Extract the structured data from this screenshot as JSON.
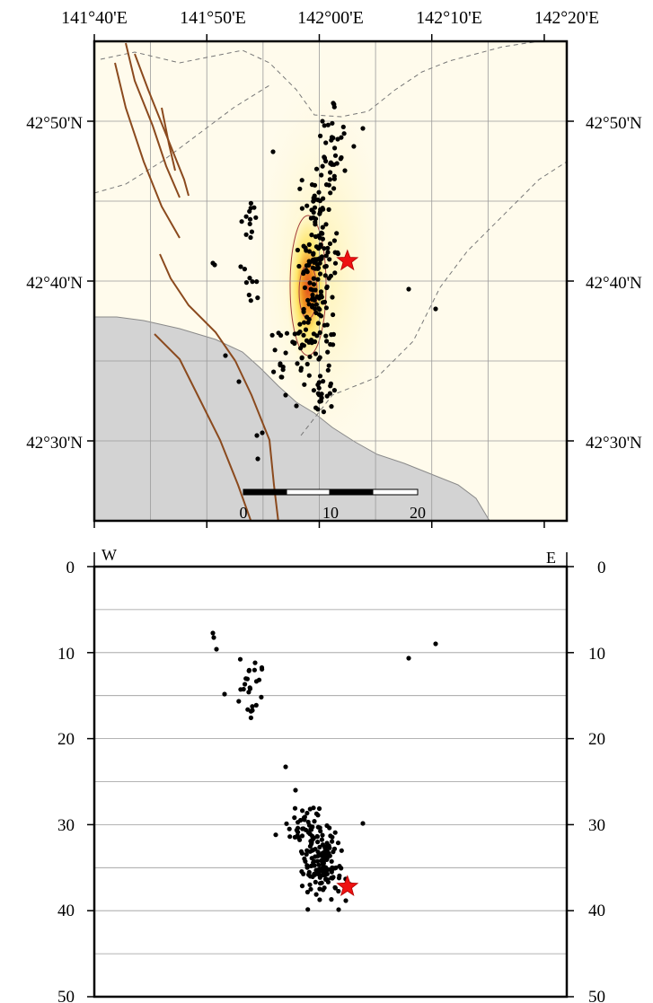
{
  "colors": {
    "land": "#d3d3d3",
    "coast": "#8a8a8a",
    "fault": "#8b4a1e",
    "gridline": "#9a9a9a",
    "contour": "#a23b3b",
    "dashed": "#777777",
    "quake": "#000000",
    "mainshock": "#ee1111",
    "heat_low": "#fffde8",
    "heat_mid": "#ffe66b",
    "heat_high": "#f09020",
    "heat_peak": "#e0521d"
  },
  "map": {
    "lon_labels": [
      "141°40'E",
      "141°50'E",
      "142°00'E",
      "142°10'E",
      "142°20'E"
    ],
    "lat_labels": [
      "42°50'N",
      "42°40'N",
      "42°30'N"
    ],
    "scale_bar_labels": [
      "0",
      "10",
      "20"
    ],
    "mainshock_icon": "red-star-icon",
    "quake_icon": "black-dot-icon"
  },
  "section": {
    "west_label": "W",
    "east_label": "E",
    "depth_labels": [
      "0",
      "10",
      "20",
      "30",
      "40",
      "50"
    ]
  },
  "chart_data": {
    "type": "scatter",
    "map_extent": {
      "lon": [
        141.633,
        142.333
      ],
      "lat": [
        42.417,
        42.917
      ]
    },
    "mainshock": {
      "lon": 142.008,
      "lat": 42.688,
      "depth_km": 37.2
    },
    "cross_section": {
      "depth_range_km": [
        0,
        50
      ]
    }
  }
}
